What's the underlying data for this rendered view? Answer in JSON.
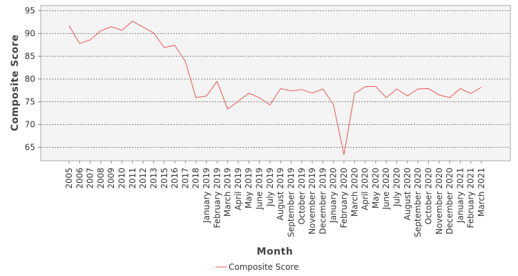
{
  "chart_data": {
    "type": "line",
    "xlabel": "Month",
    "ylabel": "Composite Score",
    "ylim": [
      62,
      96
    ],
    "yticks": [
      65,
      70,
      75,
      80,
      85,
      90,
      95
    ],
    "grid": "horizontal dotted",
    "legend": "bottom-center",
    "categories": [
      "2005",
      "2006",
      "2007",
      "2008",
      "2009",
      "2010",
      "2011",
      "2012",
      "2013",
      "2015",
      "2016",
      "2017",
      "2018",
      "January 2019",
      "February 2019",
      "March 2019",
      "April 2019",
      "May 2019",
      "June 2019",
      "July 2019",
      "August 2019",
      "September 2019",
      "October 2019",
      "November 2019",
      "December 2019",
      "January 2020",
      "February 2020",
      "March 2020",
      "April 2020",
      "May 2020",
      "June 2020",
      "July 2020",
      "August 2020",
      "September 2020",
      "October 2020",
      "November 2020",
      "December 2020",
      "January 2021",
      "February 2021",
      "March 2021"
    ],
    "series": [
      {
        "name": "Composite Score",
        "color": "#f05050",
        "values": [
          91.7,
          87.8,
          88.6,
          90.6,
          91.5,
          90.7,
          92.7,
          91.4,
          90.1,
          86.9,
          87.4,
          83.9,
          75.9,
          76.3,
          79.5,
          73.4,
          75.1,
          76.9,
          75.9,
          74.3,
          77.9,
          77.4,
          77.7,
          76.9,
          77.8,
          74.4,
          63.4,
          76.8,
          78.3,
          78.4,
          75.9,
          77.8,
          76.3,
          77.8,
          77.9,
          76.5,
          75.9,
          77.9,
          76.8,
          78.2
        ]
      }
    ]
  }
}
